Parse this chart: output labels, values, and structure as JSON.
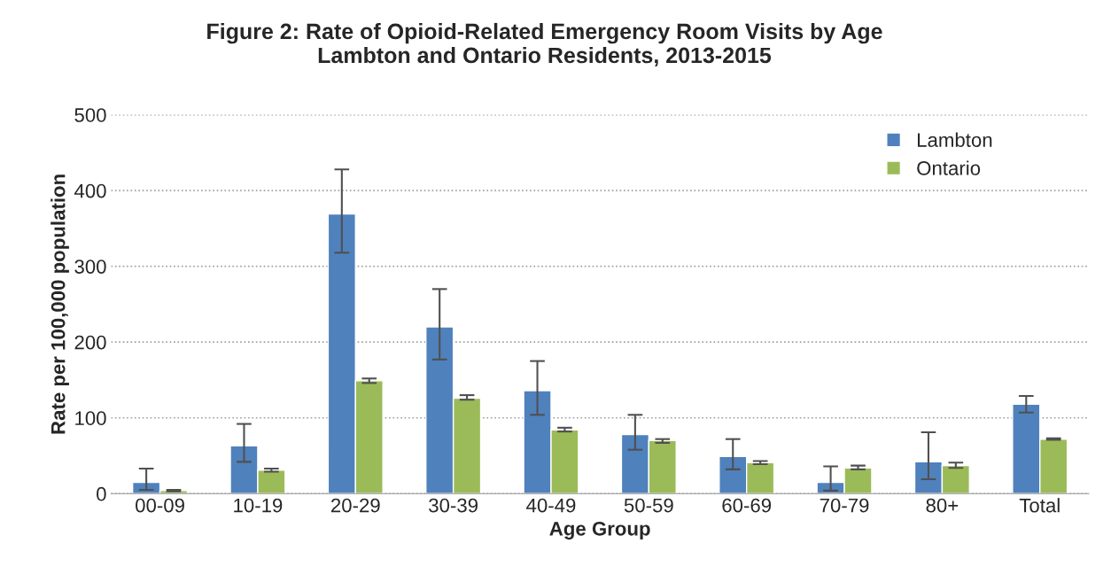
{
  "chart_data": {
    "type": "bar",
    "title": "Figure 2: Rate of Opioid-Related Emergency Room Visits by Age\nLambton and Ontario Residents, 2013-2015",
    "xlabel": "Age Group",
    "ylabel": "Rate per 100,000 population",
    "categories": [
      "00-09",
      "10-19",
      "20-29",
      "30-39",
      "40-49",
      "50-59",
      "60-69",
      "70-79",
      "80+",
      "Total"
    ],
    "series": [
      {
        "name": "Lambton",
        "color": "#4f81bd",
        "values": [
          15,
          63,
          369,
          220,
          136,
          78,
          49,
          15,
          42,
          118
        ],
        "errors": [
          [
            5,
            33
          ],
          [
            42,
            92
          ],
          [
            318,
            428
          ],
          [
            177,
            270
          ],
          [
            104,
            175
          ],
          [
            58,
            104
          ],
          [
            32,
            72
          ],
          [
            4,
            36
          ],
          [
            19,
            81
          ],
          [
            107,
            129
          ]
        ]
      },
      {
        "name": "Ontario",
        "color": "#9bbb59",
        "values": [
          4,
          31,
          149,
          126,
          84,
          70,
          41,
          34,
          37,
          72
        ],
        "errors": [
          [
            3,
            5
          ],
          [
            29,
            33
          ],
          [
            146,
            152
          ],
          [
            124,
            130
          ],
          [
            82,
            87
          ],
          [
            67,
            72
          ],
          [
            39,
            43
          ],
          [
            32,
            37
          ],
          [
            34,
            41
          ],
          [
            71,
            73
          ]
        ]
      }
    ],
    "ylim": [
      0,
      500
    ],
    "yticks": [
      0,
      100,
      200,
      300,
      400,
      500
    ],
    "grid": "y",
    "legend": "top right"
  }
}
